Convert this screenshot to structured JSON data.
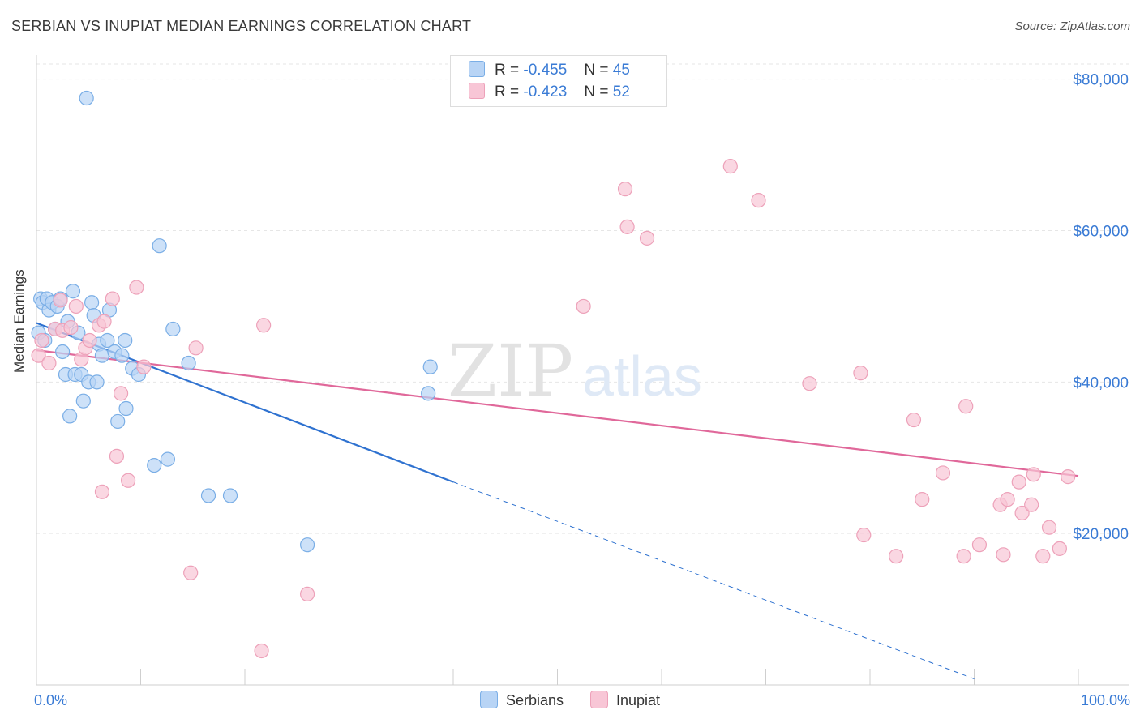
{
  "header": {
    "title": "SERBIAN VS INUPIAT MEDIAN EARNINGS CORRELATION CHART",
    "source": "Source: ZipAtlas.com"
  },
  "colors": {
    "serbians_fill": "#b8d4f5",
    "serbians_stroke": "#7aaee6",
    "serbians_line": "#2f72d0",
    "inupiat_fill": "#f8c6d6",
    "inupiat_stroke": "#eda1b9",
    "inupiat_line": "#e0689a",
    "tick_label": "#3a7bd5",
    "grid": "#e6e6e6"
  },
  "legend_top": {
    "serbians": {
      "r_label": "R =",
      "r_value": "-0.455",
      "n_label": "N =",
      "n_value": "45"
    },
    "inupiat": {
      "r_label": "R =",
      "r_value": "-0.423",
      "n_label": "N =",
      "n_value": "52"
    }
  },
  "legend_bottom": {
    "serbians": "Serbians",
    "inupiat": "Inupiat"
  },
  "watermark": {
    "zip": "ZIP",
    "atlas": "atlas"
  },
  "chart_data": {
    "type": "scatter",
    "title": "SERBIAN VS INUPIAT MEDIAN EARNINGS CORRELATION CHART",
    "xlabel": "",
    "ylabel": "Median Earnings",
    "xlim": [
      0,
      100
    ],
    "ylim": [
      0,
      82000
    ],
    "x_tick_labels": {
      "min": "0.0%",
      "max": "100.0%"
    },
    "y_ticks": [
      {
        "value": 20000,
        "label": "$20,000"
      },
      {
        "value": 40000,
        "label": "$40,000"
      },
      {
        "value": 60000,
        "label": "$60,000"
      },
      {
        "value": 80000,
        "label": "$80,000"
      }
    ],
    "grid": true,
    "legend": "top-center",
    "series": [
      {
        "name": "Serbians",
        "points": [
          [
            0.2,
            46500
          ],
          [
            0.4,
            51000
          ],
          [
            0.6,
            50500
          ],
          [
            0.8,
            45500
          ],
          [
            1.0,
            51000
          ],
          [
            1.2,
            49500
          ],
          [
            1.5,
            50500
          ],
          [
            1.8,
            47000
          ],
          [
            2.0,
            50000
          ],
          [
            2.3,
            51000
          ],
          [
            2.5,
            44000
          ],
          [
            2.8,
            41000
          ],
          [
            3.0,
            48000
          ],
          [
            3.2,
            35500
          ],
          [
            3.5,
            52000
          ],
          [
            3.7,
            41000
          ],
          [
            4.0,
            46500
          ],
          [
            4.3,
            41000
          ],
          [
            4.5,
            37500
          ],
          [
            5.0,
            40000
          ],
          [
            5.3,
            50500
          ],
          [
            5.5,
            48800
          ],
          [
            5.8,
            40000
          ],
          [
            6.0,
            45000
          ],
          [
            6.3,
            43500
          ],
          [
            6.8,
            45500
          ],
          [
            7.0,
            49500
          ],
          [
            7.5,
            44000
          ],
          [
            7.8,
            34800
          ],
          [
            8.2,
            43500
          ],
          [
            8.5,
            45500
          ],
          [
            8.6,
            36500
          ],
          [
            9.2,
            41800
          ],
          [
            9.8,
            41000
          ],
          [
            11.3,
            29000
          ],
          [
            11.8,
            58000
          ],
          [
            12.6,
            29800
          ],
          [
            13.1,
            47000
          ],
          [
            14.6,
            42500
          ],
          [
            16.5,
            25000
          ],
          [
            18.6,
            25000
          ],
          [
            26.0,
            18500
          ],
          [
            37.6,
            38500
          ],
          [
            37.8,
            42000
          ],
          [
            4.8,
            77500
          ]
        ]
      },
      {
        "name": "Inupiat",
        "points": [
          [
            0.2,
            43500
          ],
          [
            0.5,
            45500
          ],
          [
            1.2,
            42500
          ],
          [
            1.8,
            47000
          ],
          [
            2.3,
            50800
          ],
          [
            2.5,
            46800
          ],
          [
            3.3,
            47200
          ],
          [
            3.8,
            50000
          ],
          [
            4.3,
            43000
          ],
          [
            4.7,
            44500
          ],
          [
            5.1,
            45500
          ],
          [
            6.0,
            47500
          ],
          [
            6.3,
            25500
          ],
          [
            6.5,
            48000
          ],
          [
            7.3,
            51000
          ],
          [
            7.7,
            30200
          ],
          [
            8.1,
            38500
          ],
          [
            8.8,
            27000
          ],
          [
            9.6,
            52500
          ],
          [
            10.3,
            42000
          ],
          [
            14.8,
            14800
          ],
          [
            15.3,
            44500
          ],
          [
            21.6,
            4500
          ],
          [
            21.8,
            47500
          ],
          [
            26.0,
            12000
          ],
          [
            52.5,
            50000
          ],
          [
            56.5,
            65500
          ],
          [
            56.7,
            60500
          ],
          [
            58.6,
            59000
          ],
          [
            66.6,
            68500
          ],
          [
            69.3,
            64000
          ],
          [
            74.2,
            39800
          ],
          [
            79.1,
            41200
          ],
          [
            79.4,
            19800
          ],
          [
            82.5,
            17000
          ],
          [
            84.2,
            35000
          ],
          [
            85.0,
            24500
          ],
          [
            87.0,
            28000
          ],
          [
            89.0,
            17000
          ],
          [
            89.2,
            36800
          ],
          [
            90.5,
            18500
          ],
          [
            92.5,
            23800
          ],
          [
            92.8,
            17200
          ],
          [
            93.2,
            24500
          ],
          [
            94.3,
            26800
          ],
          [
            94.6,
            22700
          ],
          [
            95.5,
            23800
          ],
          [
            95.7,
            27800
          ],
          [
            96.6,
            17000
          ],
          [
            97.2,
            20800
          ],
          [
            98.2,
            18000
          ],
          [
            99.0,
            27500
          ]
        ]
      }
    ],
    "trend_lines": [
      {
        "name": "Serbians",
        "x": [
          0,
          40
        ],
        "y": [
          47800,
          26800
        ],
        "dashed_to": [
          90,
          800
        ]
      },
      {
        "name": "Inupiat",
        "x": [
          0,
          100
        ],
        "y": [
          44200,
          27600
        ]
      }
    ]
  }
}
